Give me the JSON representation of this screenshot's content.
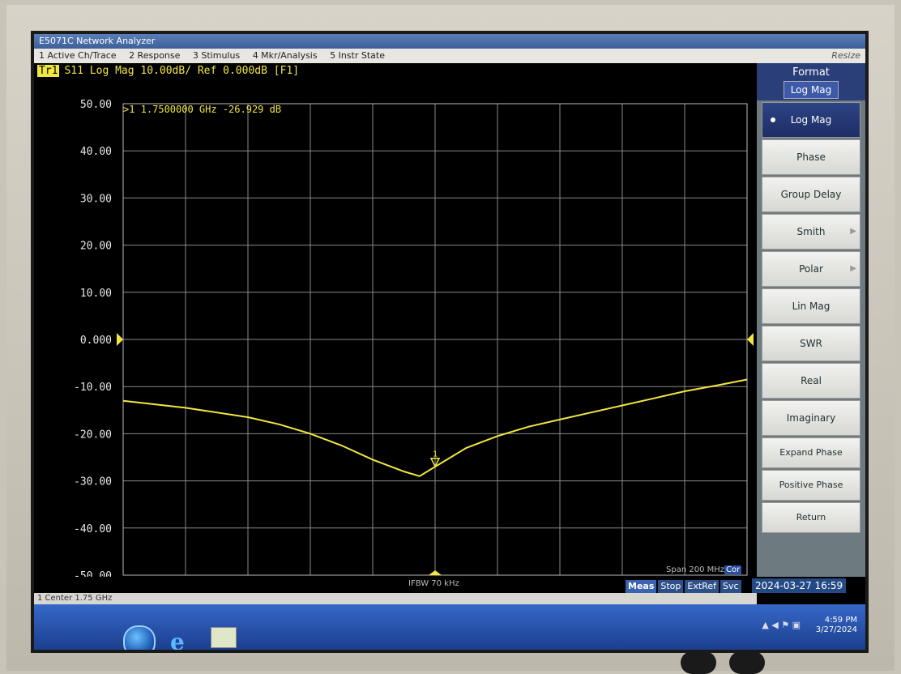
{
  "window": {
    "title": "E5071C Network Analyzer",
    "resize_label": "Resize"
  },
  "menu": {
    "items": [
      "1 Active Ch/Trace",
      "2 Response",
      "3 Stimulus",
      "4 Mkr/Analysis",
      "5 Instr State"
    ]
  },
  "trace": {
    "badge": "Tr1",
    "header": "S11 Log Mag 10.00dB/ Ref 0.000dB [F1]",
    "marker_readout": ">1  1.7500000 GHz -26.929 dB",
    "ref_label": "0.000"
  },
  "status": {
    "ifbw": "IFBW 70 kHz",
    "span": "Span 200 MHz",
    "cor": "Cor",
    "center": "1 Center 1.75 GHz",
    "buttons": [
      "Meas",
      "Stop",
      "ExtRef",
      "Svc"
    ],
    "datetime": "2024-03-27 16:59"
  },
  "softkeys": {
    "title": "Format",
    "current": "Log Mag",
    "buttons": [
      {
        "label": "Log Mag",
        "selected": true
      },
      {
        "label": "Phase"
      },
      {
        "label": "Group Delay"
      },
      {
        "label": "Smith",
        "submenu": true
      },
      {
        "label": "Polar",
        "submenu": true
      },
      {
        "label": "Lin Mag"
      },
      {
        "label": "SWR"
      },
      {
        "label": "Real"
      },
      {
        "label": "Imaginary"
      },
      {
        "label": "Expand Phase"
      },
      {
        "label": "Positive Phase"
      },
      {
        "label": "Return"
      }
    ]
  },
  "taskbar": {
    "clock_time": "4:59 PM",
    "clock_date": "3/27/2024"
  },
  "colors": {
    "trace": "#f2e640",
    "grid": "#8a8a8a",
    "axis_text": "#e8e8e8"
  },
  "chart_data": {
    "type": "line",
    "title": "S11 Log Mag 10.00dB/ Ref 0.000dB [F1]",
    "y_tick_labels": [
      "50.00",
      "40.00",
      "30.00",
      "20.00",
      "10.00",
      "0.000",
      "-10.00",
      "-20.00",
      "-30.00",
      "-40.00",
      "-50.00"
    ],
    "ylim": [
      -50,
      50
    ],
    "xlim": [
      1.65,
      1.85
    ],
    "x_unit": "GHz",
    "grid": true,
    "series": [
      {
        "values_x": [
          1.65,
          1.67,
          1.69,
          1.7,
          1.71,
          1.72,
          1.73,
          1.74,
          1.745,
          1.75,
          1.76,
          1.77,
          1.78,
          1.79,
          1.8,
          1.81,
          1.82,
          1.83,
          1.84,
          1.85
        ],
        "values_y": [
          -13.0,
          -14.5,
          -16.5,
          -18.0,
          -20.0,
          -22.5,
          -25.5,
          -28.0,
          -29.0,
          -27.0,
          -23.0,
          -20.5,
          -18.5,
          -17.0,
          -15.5,
          -14.0,
          -12.5,
          -11.0,
          -9.8,
          -8.5
        ]
      }
    ],
    "marker": {
      "label": "1",
      "x": 1.75,
      "y": -26.929
    }
  }
}
